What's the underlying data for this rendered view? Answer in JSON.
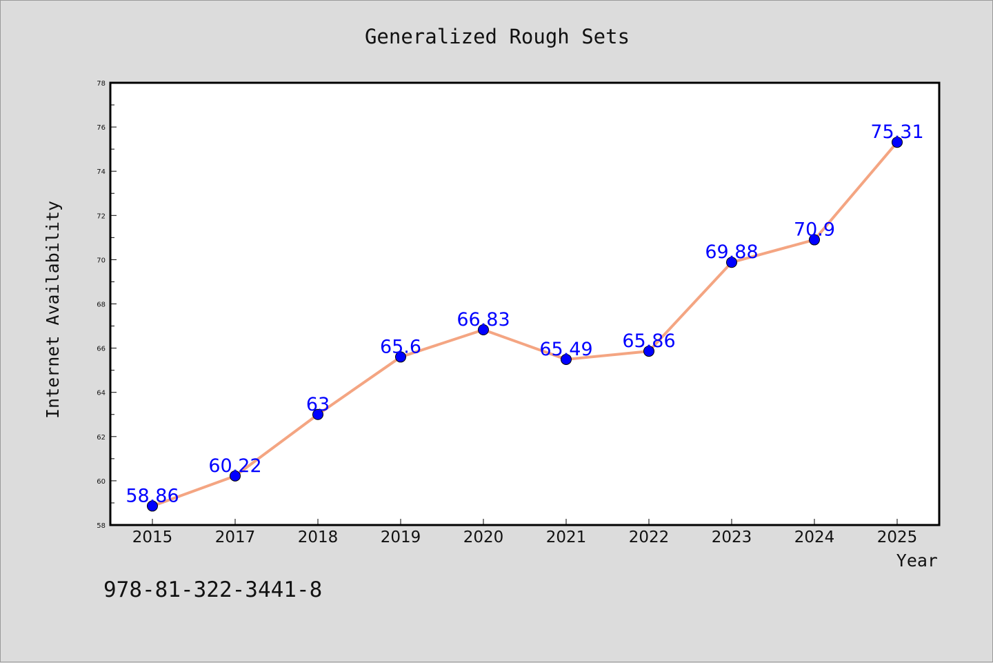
{
  "chart_data": {
    "type": "line",
    "title": "Generalized Rough Sets",
    "xlabel": "Year",
    "ylabel": "Internet Availability",
    "categories": [
      "2015",
      "2017",
      "2018",
      "2019",
      "2020",
      "2021",
      "2022",
      "2023",
      "2024",
      "2025"
    ],
    "series": [
      {
        "values": [
          58.86,
          60.22,
          63,
          65.6,
          66.83,
          65.49,
          65.86,
          69.88,
          70.9,
          75.31
        ]
      }
    ],
    "data_labels": [
      "58.86",
      "60.22",
      "63",
      "65.6",
      "66.83",
      "65.49",
      "65.86",
      "69.88",
      "70.9",
      "75.31"
    ],
    "ylim": [
      58,
      78
    ],
    "yticks": [
      58,
      60,
      62,
      64,
      66,
      68,
      70,
      72,
      74,
      76,
      78
    ],
    "grid": false,
    "legend": "none",
    "line_color": "#f4a582",
    "marker_color": "#0000ff",
    "label_color": "#0000ff",
    "background": "#dcdcdc",
    "plot_background": "#ffffff"
  },
  "caption": "978-81-322-3441-8"
}
